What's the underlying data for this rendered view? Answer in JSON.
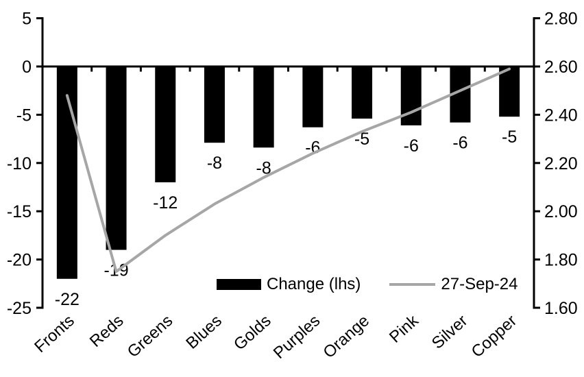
{
  "page": {
    "background": "#ffffff"
  },
  "chart_data": {
    "type": "combo",
    "title": "",
    "xlabel": "",
    "ylabel_left": "",
    "ylabel_right": "",
    "grid": "off",
    "categories": [
      "Fronts",
      "Reds",
      "Greens",
      "Blues",
      "Golds",
      "Purples",
      "Orange",
      "Pink",
      "Silver",
      "Copper"
    ],
    "series": [
      {
        "name": "Change (lhs)",
        "type": "bar",
        "axis": "left",
        "color": "#000000",
        "values": [
          -22,
          -19,
          -12,
          -8,
          -8,
          -6,
          -5,
          -6,
          -6,
          -5
        ],
        "values_precise": [
          -22,
          -19,
          -12,
          -7.9,
          -8.4,
          -6.3,
          -5.4,
          -6.1,
          -5.8,
          -5.2
        ],
        "data_labels": [
          "-22",
          "-19",
          "-12",
          "-8",
          "-8",
          "-6",
          "-5",
          "-6",
          "-6",
          "-5"
        ]
      },
      {
        "name": "27-Sep-24",
        "type": "line",
        "axis": "right",
        "color": "#a6a6a6",
        "values": [
          2.48,
          1.75,
          1.9,
          2.03,
          2.14,
          2.24,
          2.33,
          2.41,
          2.5,
          2.59
        ]
      }
    ],
    "left_axis": {
      "min": -25,
      "max": 5,
      "step": 5,
      "ticks": [
        5,
        0,
        -5,
        -10,
        -15,
        -20,
        -25
      ],
      "tick_labels": [
        "5",
        "0",
        "-5",
        "-10",
        "-15",
        "-20",
        "-25"
      ]
    },
    "right_axis": {
      "min": 1.6,
      "max": 2.8,
      "step": 0.2,
      "ticks": [
        2.8,
        2.6,
        2.4,
        2.2,
        2.0,
        1.8,
        1.6
      ],
      "tick_labels": [
        "2.80",
        "2.60",
        "2.40",
        "2.20",
        "2.00",
        "1.80",
        "1.60"
      ]
    },
    "legend": {
      "position": "inside-bottom",
      "items": [
        {
          "label": "Change (lhs)",
          "swatch": "black-bar"
        },
        {
          "label": "27-Sep-24",
          "swatch": "gray-line"
        }
      ]
    },
    "colors": {
      "bar": "#000000",
      "line": "#a6a6a6",
      "axis": "#000000",
      "text": "#000000",
      "background": "#ffffff"
    }
  }
}
